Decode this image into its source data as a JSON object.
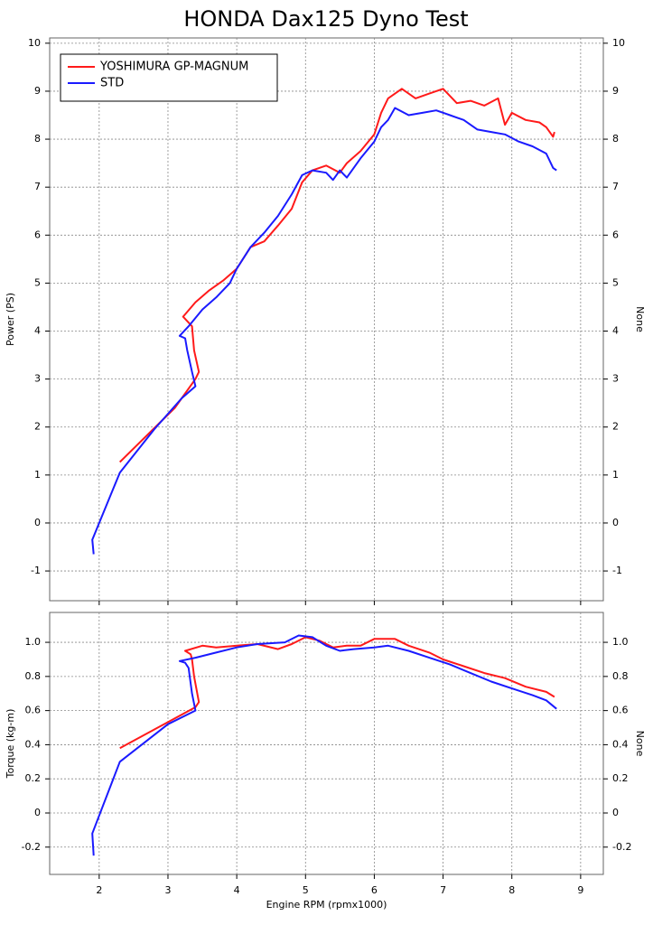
{
  "title": "HONDA Dax125 Dyno Test",
  "chart_data": [
    {
      "type": "line",
      "ylabel": "Power (PS)",
      "y2label": "None",
      "legend": "upper left",
      "grid": true,
      "xtick_labels": false,
      "xlim": [
        1.28,
        9.33
      ],
      "xticks": [
        2,
        3,
        4,
        5,
        6,
        7,
        8,
        9
      ],
      "ylim": [
        -1.62,
        10.11
      ],
      "yticks": [
        -1,
        0,
        1,
        2,
        3,
        4,
        5,
        6,
        7,
        8,
        9,
        10
      ],
      "series": [
        {
          "name": "YOSHIMURA GP-MAGNUM",
          "color": "#ff1a1a",
          "x": [
            2.3,
            3.1,
            3.4,
            3.45,
            3.38,
            3.35,
            3.22,
            3.4,
            3.6,
            3.8,
            4.0,
            4.2,
            4.4,
            4.6,
            4.8,
            4.95,
            5.1,
            5.3,
            5.5,
            5.6,
            5.8,
            6.0,
            6.1,
            6.2,
            6.4,
            6.6,
            6.8,
            7.0,
            7.2,
            7.4,
            7.6,
            7.8,
            7.9,
            8.0,
            8.2,
            8.4,
            8.5,
            8.6,
            8.62
          ],
          "values": [
            1.27,
            2.4,
            3.0,
            3.15,
            3.6,
            4.1,
            4.3,
            4.6,
            4.85,
            5.05,
            5.3,
            5.75,
            5.87,
            6.2,
            6.55,
            7.1,
            7.35,
            7.45,
            7.3,
            7.5,
            7.75,
            8.1,
            8.55,
            8.85,
            9.05,
            8.85,
            8.95,
            9.05,
            8.75,
            8.8,
            8.7,
            8.85,
            8.3,
            8.55,
            8.4,
            8.35,
            8.25,
            8.05,
            8.15
          ]
        },
        {
          "name": "STD",
          "color": "#1a1aff",
          "x": [
            1.92,
            1.9,
            2.3,
            2.8,
            3.2,
            3.4,
            3.35,
            3.28,
            3.25,
            3.17,
            3.3,
            3.5,
            3.7,
            3.9,
            4.0,
            4.2,
            4.4,
            4.6,
            4.8,
            4.95,
            5.1,
            5.3,
            5.4,
            5.5,
            5.6,
            5.8,
            6.0,
            6.1,
            6.2,
            6.3,
            6.5,
            6.7,
            6.9,
            7.1,
            7.3,
            7.5,
            7.7,
            7.9,
            8.1,
            8.3,
            8.5,
            8.6,
            8.65
          ],
          "values": [
            -0.65,
            -0.35,
            1.05,
            1.95,
            2.6,
            2.85,
            3.15,
            3.6,
            3.85,
            3.9,
            4.1,
            4.45,
            4.7,
            5.0,
            5.3,
            5.75,
            6.05,
            6.4,
            6.85,
            7.25,
            7.35,
            7.3,
            7.15,
            7.35,
            7.2,
            7.6,
            7.95,
            8.25,
            8.4,
            8.65,
            8.5,
            8.55,
            8.6,
            8.5,
            8.4,
            8.2,
            8.15,
            8.1,
            7.95,
            7.85,
            7.7,
            7.4,
            7.35
          ]
        }
      ]
    },
    {
      "type": "line",
      "ylabel": "Torque (kg-m)",
      "y2label": "None",
      "xlabel": "Engine RPM (rpmx1000)",
      "grid": true,
      "xtick_labels": true,
      "xlim": [
        1.28,
        9.33
      ],
      "xticks": [
        2,
        3,
        4,
        5,
        6,
        7,
        8,
        9
      ],
      "ylim": [
        -0.36,
        1.175
      ],
      "yticks": [
        -0.2,
        0,
        0.2,
        0.4,
        0.6,
        0.8,
        {
          "value": 1,
          "label": "1.0"
        }
      ],
      "series": [
        {
          "color": "#ff1a1a",
          "x": [
            2.3,
            3.4,
            3.45,
            3.38,
            3.35,
            3.33,
            3.25,
            3.5,
            3.7,
            4.0,
            4.3,
            4.6,
            4.8,
            5.0,
            5.2,
            5.4,
            5.6,
            5.8,
            6.0,
            6.3,
            6.5,
            6.8,
            7.0,
            7.3,
            7.6,
            7.9,
            8.2,
            8.5,
            8.62
          ],
          "values": [
            0.38,
            0.62,
            0.65,
            0.8,
            0.9,
            0.93,
            0.95,
            0.98,
            0.97,
            0.98,
            0.99,
            0.96,
            0.99,
            1.03,
            1.01,
            0.97,
            0.98,
            0.98,
            1.02,
            1.02,
            0.98,
            0.94,
            0.9,
            0.86,
            0.82,
            0.79,
            0.74,
            0.71,
            0.68
          ]
        },
        {
          "color": "#1a1aff",
          "x": [
            1.92,
            1.9,
            2.3,
            3.0,
            3.4,
            3.35,
            3.3,
            3.25,
            3.17,
            3.4,
            3.7,
            4.0,
            4.3,
            4.7,
            4.9,
            5.1,
            5.3,
            5.5,
            5.7,
            6.0,
            6.2,
            6.5,
            6.8,
            7.1,
            7.4,
            7.7,
            8.0,
            8.3,
            8.5,
            8.65
          ],
          "values": [
            -0.25,
            -0.12,
            0.3,
            0.52,
            0.6,
            0.7,
            0.85,
            0.88,
            0.89,
            0.91,
            0.94,
            0.97,
            0.99,
            1.0,
            1.04,
            1.03,
            0.98,
            0.95,
            0.96,
            0.97,
            0.98,
            0.95,
            0.91,
            0.87,
            0.82,
            0.77,
            0.73,
            0.69,
            0.66,
            0.61
          ]
        }
      ]
    }
  ]
}
